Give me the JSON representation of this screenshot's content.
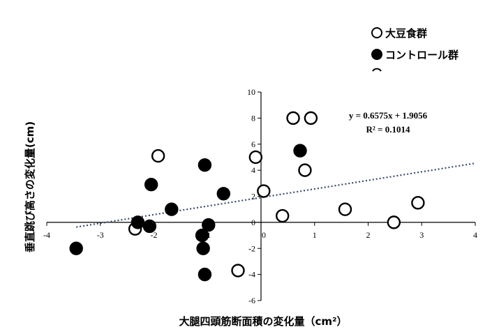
{
  "chart_data": {
    "type": "scatter",
    "xlabel": "大腿四頭筋断面積の変化量（cm²）",
    "ylabel": "垂直跳び高さの変化量(cm)",
    "xlim": [
      -4,
      4
    ],
    "ylim": [
      -6,
      10
    ],
    "x_ticks": [
      -4,
      -3,
      -2,
      -1,
      0,
      1,
      2,
      3,
      4
    ],
    "y_ticks": [
      -6,
      -4,
      -2,
      0,
      2,
      4,
      6,
      8,
      10
    ],
    "x_tick_labels": [
      "-4",
      "-3",
      "-2",
      "-1",
      "0",
      "1",
      "2",
      "3",
      "4"
    ],
    "y_tick_labels": [
      "-6",
      "-4",
      "-2",
      "0",
      "2",
      "4",
      "6",
      "8",
      "10"
    ],
    "legend_position": "top-right",
    "series": [
      {
        "name": "大豆食群",
        "marker": "open-circle",
        "points": [
          {
            "x": -1.92,
            "y": 5.1
          },
          {
            "x": -0.1,
            "y": 5.0
          },
          {
            "x": 0.6,
            "y": 8.0
          },
          {
            "x": 0.93,
            "y": 8.0
          },
          {
            "x": 0.82,
            "y": 4.0
          },
          {
            "x": 0.05,
            "y": 2.4
          },
          {
            "x": 0.4,
            "y": 0.5
          },
          {
            "x": 1.57,
            "y": 1.0
          },
          {
            "x": 2.93,
            "y": 1.5
          },
          {
            "x": 2.48,
            "y": 0.0
          },
          {
            "x": -2.35,
            "y": -0.5
          },
          {
            "x": -0.43,
            "y": -3.7
          }
        ]
      },
      {
        "name": "コントロール群",
        "marker": "filled-circle",
        "points": [
          {
            "x": -3.45,
            "y": -2.0
          },
          {
            "x": -2.3,
            "y": 0.0
          },
          {
            "x": -2.08,
            "y": -0.3
          },
          {
            "x": -2.05,
            "y": 2.9
          },
          {
            "x": -1.67,
            "y": 1.0
          },
          {
            "x": -1.05,
            "y": 4.4
          },
          {
            "x": -0.98,
            "y": -0.2
          },
          {
            "x": -1.1,
            "y": -1.0
          },
          {
            "x": -1.08,
            "y": -2.0
          },
          {
            "x": -1.05,
            "y": -4.0
          },
          {
            "x": -0.7,
            "y": 2.2
          },
          {
            "x": 0.73,
            "y": 5.5
          }
        ]
      }
    ],
    "trendline": {
      "slope": 0.6575,
      "intercept": 1.9056,
      "x_range": [
        -3.45,
        4.0
      ],
      "style": "dotted",
      "color": "#3a4a66"
    },
    "equation_text": "y = 0.6575x + 1.9056",
    "r2_text": "R² = 0.1014"
  },
  "legend": {
    "item1": "大豆食群",
    "item2": "コントロール群"
  }
}
